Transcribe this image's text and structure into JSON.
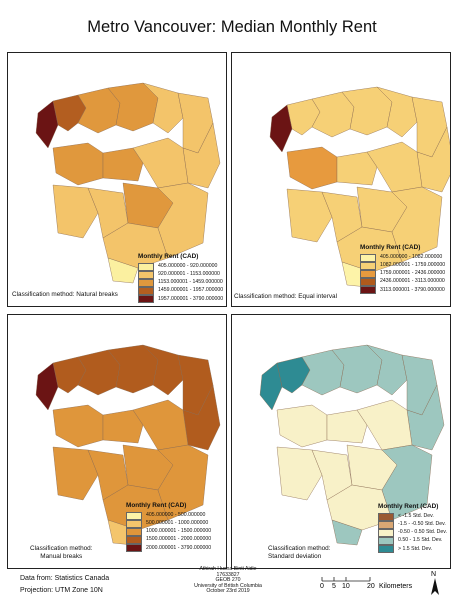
{
  "title": "Metro Vancouver: Median Monthly Rent",
  "legend_title": "Monthly Rent (CAD)",
  "panels": [
    {
      "method": "Classification method: Natural breaks",
      "classes": [
        {
          "label": "405.000000 - 920.000000",
          "color": "#fbf0a0"
        },
        {
          "label": "920.000001 - 1153.000000",
          "color": "#f3c46a"
        },
        {
          "label": "1153.000001 - 1459.000000",
          "color": "#e0983d"
        },
        {
          "label": "1459.000001 - 1957.000000",
          "color": "#b35e20"
        },
        {
          "label": "1957.000001 - 3790.000000",
          "color": "#6b1414"
        }
      ]
    },
    {
      "method": "Classification method: Equal interval",
      "classes": [
        {
          "label": "405.000000 - 1082.000000",
          "color": "#fdf3a8"
        },
        {
          "label": "1082.000001 - 1759.000000",
          "color": "#f6d076"
        },
        {
          "label": "1759.000001 - 2436.000000",
          "color": "#e79a3e"
        },
        {
          "label": "2436.000001 - 3113.000000",
          "color": "#b05a1c"
        },
        {
          "label": "3113.000001 - 3790.000000",
          "color": "#6b1414"
        }
      ]
    },
    {
      "method_line1": "Classification method:",
      "method_line2": "Manual breaks",
      "classes": [
        {
          "label": "405.000000 - 500.000000",
          "color": "#fdf3a8"
        },
        {
          "label": "500.000001 - 1000.000000",
          "color": "#f4c56c"
        },
        {
          "label": "1000.000001 - 1500.000000",
          "color": "#df963b"
        },
        {
          "label": "1500.000001 - 2000.000000",
          "color": "#b15c1e"
        },
        {
          "label": "2000.000001 - 3790.000000",
          "color": "#6b1414"
        }
      ]
    },
    {
      "method_line1": "Classification method:",
      "method_line2": "Standard deviation",
      "classes": [
        {
          "label": "< -1.5 Std. Dev.",
          "color": "#9a5a32"
        },
        {
          "label": "-1.5 - -0.50 Std. Dev.",
          "color": "#d9a774"
        },
        {
          "label": "-0.50 - 0.50 Std. Dev.",
          "color": "#f8f1c8"
        },
        {
          "label": "0.50 - 1.5 Std. Dev.",
          "color": "#9dc7bf"
        },
        {
          "label": "> 1.5 Std. Dev.",
          "color": "#2e8b93"
        }
      ]
    }
  ],
  "data_source": "Data from: Statistics Canada",
  "projection": "Projection: UTM Zone 10N",
  "credit": {
    "name": "Athirah Husna Binti Aidie",
    "id": "17633827",
    "course": "GEOB 270",
    "university": "University of British Columbia",
    "date": "October 23rd 2019"
  },
  "scale_bar": {
    "ticks": [
      "0",
      "5",
      "10",
      "20"
    ],
    "unit": "Kilometers"
  },
  "north_label": "N"
}
